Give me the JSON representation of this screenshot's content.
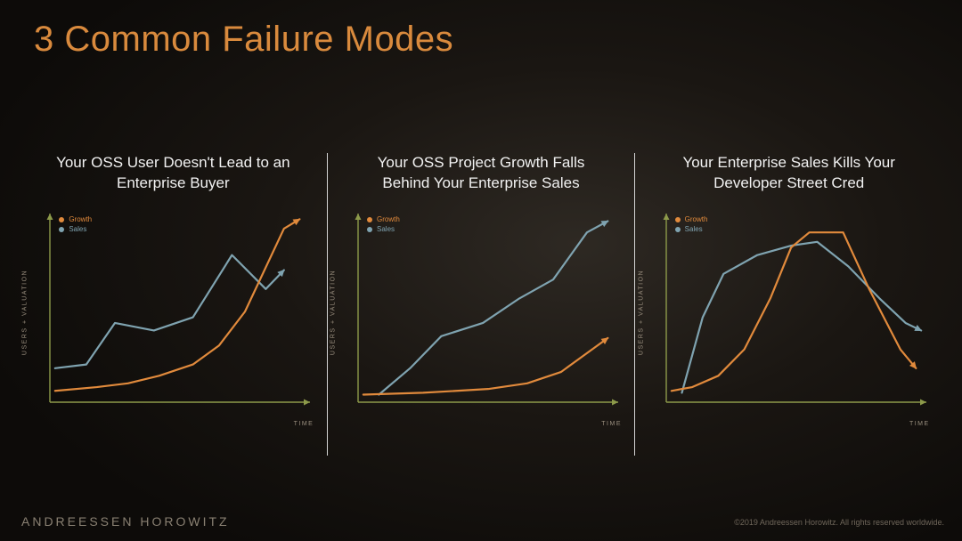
{
  "title": {
    "text": "3 Common Failure Modes",
    "color": "#d98a3d",
    "fontsize": 40
  },
  "brand": "ANDREESSEN HOROWITZ",
  "copyright": "©2019 Andreessen Horowitz. All rights reserved worldwide.",
  "axis": {
    "x_label": "TIME",
    "y_label": "USERS + VALUATION",
    "axis_color": "#8d9a4a",
    "xlim": [
      0,
      100
    ],
    "ylim": [
      0,
      100
    ]
  },
  "legend": {
    "growth": {
      "label": "Growth",
      "color": "#e18a3c"
    },
    "sales": {
      "label": "Sales",
      "color": "#7fa3b0"
    }
  },
  "line_style": {
    "width": 2.2,
    "arrow_size": 7
  },
  "panels": [
    {
      "title": "Your OSS User Doesn't Lead to an\nEnterprise Buyer",
      "series": {
        "growth": [
          [
            2,
            6
          ],
          [
            18,
            8
          ],
          [
            30,
            10
          ],
          [
            42,
            14
          ],
          [
            55,
            20
          ],
          [
            65,
            30
          ],
          [
            75,
            48
          ],
          [
            90,
            92
          ],
          [
            96,
            97
          ]
        ],
        "sales": [
          [
            2,
            18
          ],
          [
            14,
            20
          ],
          [
            25,
            42
          ],
          [
            40,
            38
          ],
          [
            55,
            45
          ],
          [
            70,
            78
          ],
          [
            83,
            60
          ],
          [
            90,
            70
          ]
        ]
      }
    },
    {
      "title": "Your OSS Project Growth Falls\nBehind Your Enterprise Sales",
      "series": {
        "growth": [
          [
            2,
            4
          ],
          [
            25,
            5
          ],
          [
            50,
            7
          ],
          [
            65,
            10
          ],
          [
            78,
            16
          ],
          [
            90,
            28
          ],
          [
            96,
            34
          ]
        ],
        "sales": [
          [
            8,
            4
          ],
          [
            20,
            18
          ],
          [
            32,
            35
          ],
          [
            48,
            42
          ],
          [
            62,
            55
          ],
          [
            75,
            65
          ],
          [
            88,
            90
          ],
          [
            96,
            96
          ]
        ]
      }
    },
    {
      "title": "Your Enterprise Sales Kills Your\nDeveloper Street Cred",
      "series": {
        "growth": [
          [
            2,
            6
          ],
          [
            10,
            8
          ],
          [
            20,
            14
          ],
          [
            30,
            28
          ],
          [
            40,
            55
          ],
          [
            48,
            82
          ],
          [
            55,
            90
          ],
          [
            68,
            90
          ],
          [
            78,
            60
          ],
          [
            90,
            28
          ],
          [
            96,
            18
          ]
        ],
        "sales": [
          [
            6,
            5
          ],
          [
            14,
            45
          ],
          [
            22,
            68
          ],
          [
            35,
            78
          ],
          [
            48,
            83
          ],
          [
            58,
            85
          ],
          [
            70,
            72
          ],
          [
            82,
            55
          ],
          [
            92,
            42
          ],
          [
            98,
            38
          ]
        ]
      }
    }
  ]
}
